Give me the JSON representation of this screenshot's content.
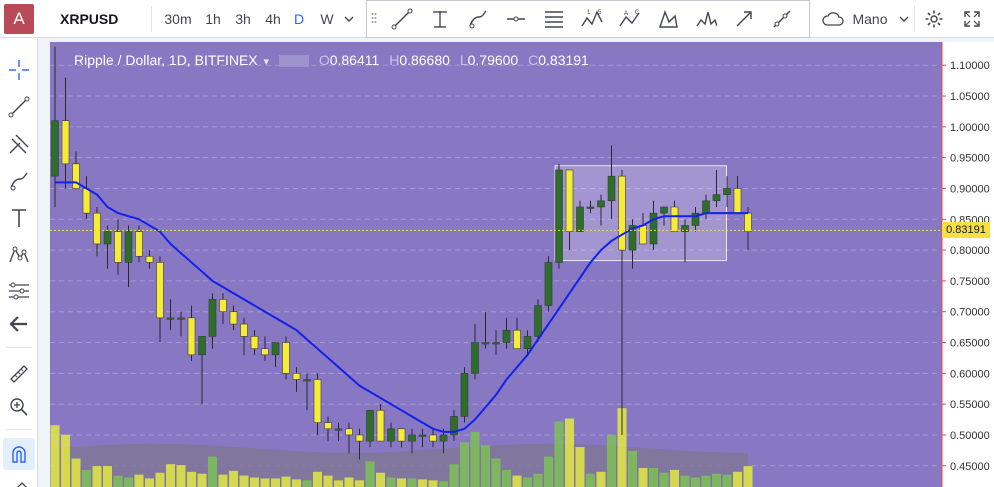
{
  "topbar": {
    "avatar": "A",
    "symbol": "XRPUSD",
    "intervals": [
      "30m",
      "1h",
      "3h",
      "4h",
      "D",
      "W"
    ],
    "active_interval": "D",
    "drawing_mode": "Mano"
  },
  "legend": {
    "title": "Ripple / Dollar, 1D, BITFINEX",
    "o_label": "O",
    "o": "0.86411",
    "h_label": "H",
    "h": "0.86680",
    "l_label": "L",
    "l": "0.79600",
    "c_label": "C",
    "c": "0.83191"
  },
  "last_price": "0.83191",
  "colors": {
    "background": "#8878c4",
    "up": "#2d6e2a",
    "down": "#f4ec37",
    "ma": "#1222e8",
    "vol_up": "#7ec156",
    "vol_down": "#e3ea43",
    "accent": "#2962ff"
  },
  "chart_data": {
    "type": "candlestick",
    "title": "Ripple / Dollar, 1D, BITFINEX",
    "y_ticks": [
      "1.10000",
      "1.05000",
      "1.00000",
      "0.95000",
      "0.90000",
      "0.85000",
      "0.80000",
      "0.75000",
      "0.70000",
      "0.65000",
      "0.60000",
      "0.55000",
      "0.50000",
      "0.45000"
    ],
    "ylim": [
      0.435,
      1.115
    ],
    "grid": true,
    "candles": [
      [
        0.92,
        1.13,
        0.87,
        1.01
      ],
      [
        1.01,
        1.08,
        0.9,
        0.94
      ],
      [
        0.94,
        0.96,
        0.9,
        0.9
      ],
      [
        0.9,
        0.92,
        0.85,
        0.86
      ],
      [
        0.86,
        0.87,
        0.79,
        0.81
      ],
      [
        0.81,
        0.84,
        0.77,
        0.83
      ],
      [
        0.83,
        0.85,
        0.76,
        0.78
      ],
      [
        0.78,
        0.84,
        0.74,
        0.83
      ],
      [
        0.83,
        0.84,
        0.78,
        0.79
      ],
      [
        0.79,
        0.8,
        0.77,
        0.78
      ],
      [
        0.78,
        0.79,
        0.65,
        0.69
      ],
      [
        0.69,
        0.72,
        0.67,
        0.69
      ],
      [
        0.69,
        0.7,
        0.66,
        0.69
      ],
      [
        0.69,
        0.71,
        0.62,
        0.63
      ],
      [
        0.63,
        0.66,
        0.55,
        0.66
      ],
      [
        0.66,
        0.73,
        0.64,
        0.72
      ],
      [
        0.72,
        0.73,
        0.68,
        0.7
      ],
      [
        0.7,
        0.71,
        0.67,
        0.68
      ],
      [
        0.68,
        0.69,
        0.63,
        0.66
      ],
      [
        0.66,
        0.67,
        0.63,
        0.64
      ],
      [
        0.64,
        0.66,
        0.62,
        0.63
      ],
      [
        0.63,
        0.65,
        0.61,
        0.65
      ],
      [
        0.65,
        0.66,
        0.59,
        0.6
      ],
      [
        0.6,
        0.61,
        0.57,
        0.59
      ],
      [
        0.59,
        0.6,
        0.54,
        0.59
      ],
      [
        0.59,
        0.6,
        0.5,
        0.52
      ],
      [
        0.52,
        0.53,
        0.49,
        0.51
      ],
      [
        0.51,
        0.52,
        0.49,
        0.51
      ],
      [
        0.51,
        0.52,
        0.47,
        0.5
      ],
      [
        0.5,
        0.51,
        0.46,
        0.49
      ],
      [
        0.49,
        0.54,
        0.48,
        0.54
      ],
      [
        0.54,
        0.55,
        0.49,
        0.49
      ],
      [
        0.49,
        0.52,
        0.48,
        0.51
      ],
      [
        0.51,
        0.51,
        0.48,
        0.49
      ],
      [
        0.49,
        0.51,
        0.47,
        0.5
      ],
      [
        0.5,
        0.51,
        0.48,
        0.5
      ],
      [
        0.5,
        0.51,
        0.48,
        0.49
      ],
      [
        0.49,
        0.51,
        0.47,
        0.5
      ],
      [
        0.5,
        0.54,
        0.49,
        0.53
      ],
      [
        0.53,
        0.61,
        0.52,
        0.6
      ],
      [
        0.6,
        0.68,
        0.59,
        0.65
      ],
      [
        0.65,
        0.7,
        0.64,
        0.65
      ],
      [
        0.65,
        0.67,
        0.63,
        0.65
      ],
      [
        0.65,
        0.69,
        0.64,
        0.67
      ],
      [
        0.67,
        0.69,
        0.64,
        0.64
      ],
      [
        0.64,
        0.67,
        0.63,
        0.66
      ],
      [
        0.66,
        0.72,
        0.65,
        0.71
      ],
      [
        0.71,
        0.79,
        0.7,
        0.78
      ],
      [
        0.78,
        0.94,
        0.77,
        0.93
      ],
      [
        0.93,
        0.93,
        0.8,
        0.83
      ],
      [
        0.83,
        0.88,
        0.83,
        0.87
      ],
      [
        0.87,
        0.88,
        0.86,
        0.87
      ],
      [
        0.87,
        0.89,
        0.84,
        0.88
      ],
      [
        0.88,
        0.97,
        0.85,
        0.92
      ],
      [
        0.92,
        0.93,
        0.5,
        0.8
      ],
      [
        0.8,
        0.85,
        0.77,
        0.84
      ],
      [
        0.84,
        0.86,
        0.81,
        0.81
      ],
      [
        0.81,
        0.88,
        0.8,
        0.86
      ],
      [
        0.86,
        0.87,
        0.84,
        0.87
      ],
      [
        0.87,
        0.88,
        0.83,
        0.83
      ],
      [
        0.83,
        0.85,
        0.78,
        0.84
      ],
      [
        0.84,
        0.87,
        0.83,
        0.86
      ],
      [
        0.86,
        0.89,
        0.85,
        0.88
      ],
      [
        0.88,
        0.93,
        0.87,
        0.89
      ],
      [
        0.89,
        0.92,
        0.87,
        0.9
      ],
      [
        0.9,
        0.92,
        0.86,
        0.86
      ],
      [
        0.86,
        0.87,
        0.8,
        0.83
      ]
    ],
    "ma": [
      0.91,
      0.91,
      0.91,
      0.9,
      0.89,
      0.87,
      0.86,
      0.855,
      0.85,
      0.84,
      0.83,
      0.81,
      0.795,
      0.78,
      0.765,
      0.75,
      0.74,
      0.73,
      0.72,
      0.71,
      0.7,
      0.69,
      0.68,
      0.67,
      0.655,
      0.64,
      0.625,
      0.61,
      0.595,
      0.58,
      0.57,
      0.56,
      0.55,
      0.54,
      0.53,
      0.52,
      0.51,
      0.505,
      0.505,
      0.51,
      0.525,
      0.545,
      0.565,
      0.59,
      0.61,
      0.63,
      0.655,
      0.68,
      0.705,
      0.73,
      0.755,
      0.78,
      0.8,
      0.815,
      0.825,
      0.835,
      0.84,
      0.85,
      0.855,
      0.855,
      0.855,
      0.855,
      0.86,
      0.86,
      0.86,
      0.86,
      0.86
    ],
    "volume": [
      [
        0.65,
        "down"
      ],
      [
        0.55,
        "down"
      ],
      [
        0.3,
        "down"
      ],
      [
        0.18,
        "up"
      ],
      [
        0.22,
        "down"
      ],
      [
        0.22,
        "down"
      ],
      [
        0.12,
        "up"
      ],
      [
        0.1,
        "up"
      ],
      [
        0.13,
        "down"
      ],
      [
        0.09,
        "down"
      ],
      [
        0.15,
        "down"
      ],
      [
        0.24,
        "down"
      ],
      [
        0.23,
        "down"
      ],
      [
        0.16,
        "down"
      ],
      [
        0.14,
        "down"
      ],
      [
        0.32,
        "up"
      ],
      [
        0.13,
        "down"
      ],
      [
        0.17,
        "down"
      ],
      [
        0.12,
        "down"
      ],
      [
        0.1,
        "down"
      ],
      [
        0.09,
        "down"
      ],
      [
        0.09,
        "down"
      ],
      [
        0.11,
        "down"
      ],
      [
        0.08,
        "down"
      ],
      [
        0.07,
        "up"
      ],
      [
        0.16,
        "down"
      ],
      [
        0.12,
        "down"
      ],
      [
        0.07,
        "down"
      ],
      [
        0.1,
        "down"
      ],
      [
        0.07,
        "down"
      ],
      [
        0.27,
        "up"
      ],
      [
        0.15,
        "down"
      ],
      [
        0.1,
        "up"
      ],
      [
        0.09,
        "down"
      ],
      [
        0.09,
        "up"
      ],
      [
        0.08,
        "down"
      ],
      [
        0.07,
        "down"
      ],
      [
        0.06,
        "up"
      ],
      [
        0.24,
        "up"
      ],
      [
        0.47,
        "up"
      ],
      [
        0.58,
        "up"
      ],
      [
        0.44,
        "up"
      ],
      [
        0.3,
        "up"
      ],
      [
        0.18,
        "up"
      ],
      [
        0.12,
        "down"
      ],
      [
        0.1,
        "up"
      ],
      [
        0.14,
        "up"
      ],
      [
        0.32,
        "up"
      ],
      [
        0.69,
        "up"
      ],
      [
        0.72,
        "down"
      ],
      [
        0.42,
        "down"
      ],
      [
        0.14,
        "up"
      ],
      [
        0.16,
        "down"
      ],
      [
        0.55,
        "up"
      ],
      [
        0.83,
        "down"
      ],
      [
        0.38,
        "up"
      ],
      [
        0.2,
        "down"
      ],
      [
        0.2,
        "up"
      ],
      [
        0.15,
        "up"
      ],
      [
        0.18,
        "down"
      ],
      [
        0.12,
        "up"
      ],
      [
        0.1,
        "up"
      ],
      [
        0.12,
        "up"
      ],
      [
        0.14,
        "up"
      ],
      [
        0.13,
        "up"
      ],
      [
        0.16,
        "down"
      ],
      [
        0.22,
        "down"
      ]
    ],
    "range_box": {
      "x0": 48,
      "x1": 63,
      "top": 0.937,
      "bottom": 0.783
    }
  }
}
